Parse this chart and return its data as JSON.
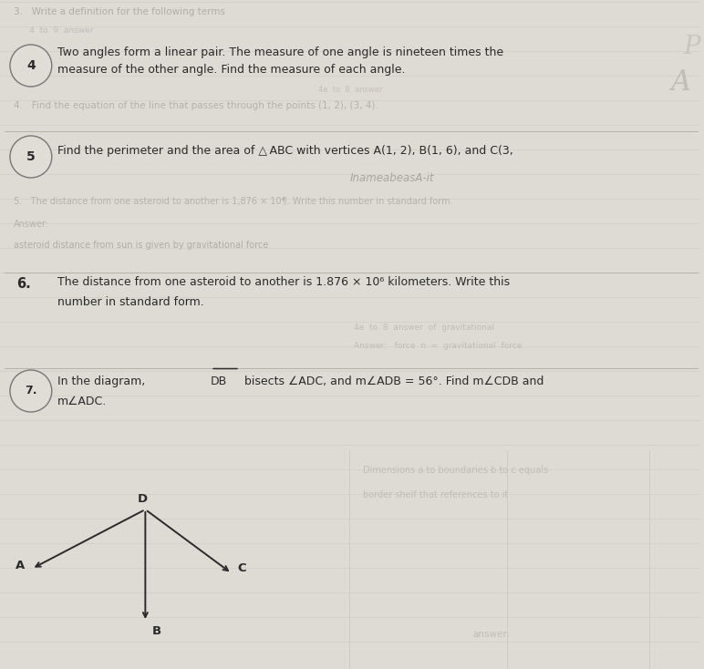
{
  "bg_color": "#dddbd4",
  "page_color": "#e8e6e0",
  "text_color": "#2a2a2a",
  "faded_color": "#a0a098",
  "very_faded": "#b8b5ae",
  "line_color": "#c0bdb6",
  "problem4_line1": "Two angles form a linear pair. The measure of one angle is nineteen times the",
  "problem4_line2": "measure of the other angle. Find the measure of each angle.",
  "problem5_line1": "Find the perimeter and the area of △ ABC with vertices A(1, 2), B(1, 6), and C(3,",
  "problem6_line1": "The distance from one asteroid to another is 1.876 × 10⁶ kilometers. Write this",
  "problem6_line2": "number in standard form.",
  "problem7_line1": "In the diagram,",
  "problem7_db": "DB",
  "problem7_rest": " bisects ∠ADC, and m∠ADB = 56°. Find m∠CDB and",
  "problem7_line2": "m∠ADC.",
  "faded_top": "3.   Write a definition for the following terms",
  "faded_mid1": "4.   Find the equation of the line that passes through the points (1, 2), (3, 4).",
  "faded_mid2": "5.   The distance from one asteroid to another is 1,876 × 10¶. Write this number in standard form.",
  "faded_mid3": "Answer:",
  "faded_mid4": "asteroid distance from sun is given by gravitational force",
  "faded_right1": "Dimensions a to boundaries b to c equals",
  "faded_right2": "border shelf that references to it",
  "faded_bottom": "answer:",
  "inameabeas": "InameabeasA-it",
  "P_ghost": "P",
  "A_ghost": "A",
  "diagram_D": [
    1.6,
    1.75
  ],
  "diagram_A": [
    0.35,
    1.1
  ],
  "diagram_C": [
    2.55,
    1.05
  ],
  "diagram_B": [
    1.6,
    0.52
  ]
}
